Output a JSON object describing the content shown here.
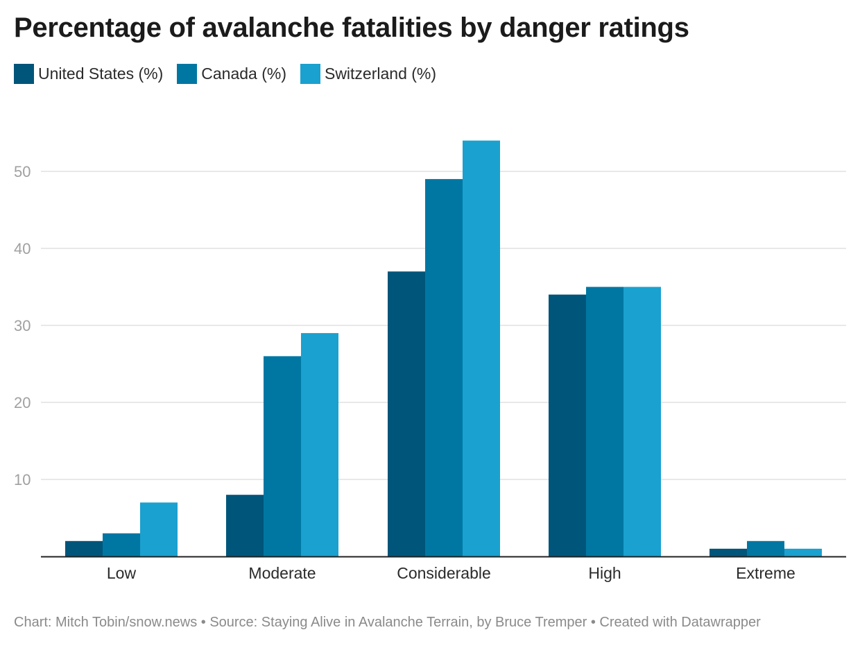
{
  "title": "Percentage of avalanche fatalities by danger ratings",
  "footer": "Chart: Mitch Tobin/snow.news • Source: Staying Alive in Avalanche Terrain, by Bruce Tremper • Created with Datawrapper",
  "colors": {
    "united_states": "#00557a",
    "canada": "#0077a3",
    "switzerland": "#1aa1cf",
    "grid": "#e0e0e0",
    "axis": "#222222",
    "tick_text": "#a0a0a0",
    "category_text": "#2a2a2a"
  },
  "chart_data": {
    "type": "bar",
    "title": "Percentage of avalanche fatalities by danger ratings",
    "categories": [
      "Low",
      "Moderate",
      "Considerable",
      "High",
      "Extreme"
    ],
    "series": [
      {
        "name": "United States (%)",
        "values": [
          2,
          8,
          37,
          34,
          1
        ],
        "color": "#00557a"
      },
      {
        "name": "Canada (%)",
        "values": [
          3,
          26,
          49,
          35,
          2
        ],
        "color": "#0077a3"
      },
      {
        "name": "Switzerland (%)",
        "values": [
          7,
          29,
          54,
          35,
          1
        ],
        "color": "#1aa1cf"
      }
    ],
    "yticks": [
      10,
      20,
      30,
      40,
      50
    ],
    "ylim": [
      0,
      55
    ],
    "xlabel": "",
    "ylabel": "",
    "grid": true,
    "legend": "top-left"
  }
}
